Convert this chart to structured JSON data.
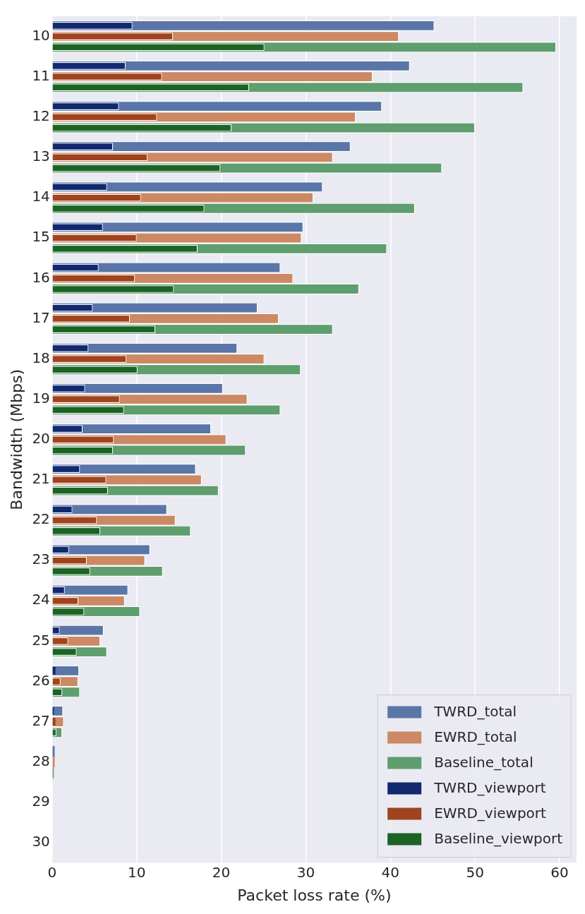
{
  "chart_data": {
    "type": "bar",
    "orientation": "horizontal",
    "xlabel": "Packet loss rate (%)",
    "ylabel": "Bandwidth (Mbps)",
    "categories": [
      "10",
      "11",
      "12",
      "13",
      "14",
      "15",
      "16",
      "17",
      "18",
      "19",
      "20",
      "21",
      "22",
      "23",
      "24",
      "25",
      "26",
      "27",
      "28",
      "29",
      "30"
    ],
    "xlim": [
      0,
      62
    ],
    "xticks": [
      0,
      10,
      20,
      30,
      40,
      50,
      60
    ],
    "grid": "x",
    "legend": "bottom right",
    "series": [
      {
        "name": "TWRD_total",
        "color": "#5a76a8",
        "values": [
          45.2,
          42.3,
          39.0,
          35.3,
          32.0,
          29.7,
          27.0,
          24.3,
          21.9,
          20.2,
          18.8,
          17.0,
          13.6,
          11.6,
          9.0,
          6.1,
          3.2,
          1.3,
          0.3,
          0,
          0
        ]
      },
      {
        "name": "EWRD_total",
        "color": "#cc8963",
        "values": [
          41.0,
          37.9,
          35.9,
          33.2,
          30.9,
          29.5,
          28.5,
          26.8,
          25.1,
          23.1,
          20.6,
          17.7,
          14.6,
          11.0,
          8.6,
          5.7,
          3.1,
          1.4,
          0.3,
          0,
          0
        ]
      },
      {
        "name": "Baseline_total",
        "color": "#5f9e6e",
        "values": [
          59.6,
          55.7,
          50.0,
          46.1,
          42.9,
          39.6,
          36.3,
          33.2,
          29.4,
          27.0,
          22.9,
          19.7,
          16.4,
          13.1,
          10.4,
          6.5,
          3.3,
          1.2,
          0.2,
          0,
          0
        ]
      },
      {
        "name": "TWRD_viewport",
        "color": "#12286f",
        "values": [
          9.5,
          8.7,
          7.9,
          7.2,
          6.5,
          6.0,
          5.5,
          4.8,
          4.3,
          3.9,
          3.6,
          3.3,
          2.4,
          2.0,
          1.5,
          0.9,
          0.4,
          0.2,
          null,
          0,
          0
        ]
      },
      {
        "name": "EWRD_viewport",
        "color": "#a0431f",
        "values": [
          14.3,
          13.0,
          12.4,
          11.3,
          10.5,
          10.0,
          9.8,
          9.2,
          8.8,
          8.0,
          7.3,
          6.4,
          5.3,
          4.1,
          3.1,
          1.9,
          1.0,
          0.4,
          null,
          0,
          0
        ]
      },
      {
        "name": "Baseline_viewport",
        "color": "#1d6324",
        "values": [
          25.1,
          23.3,
          21.2,
          19.9,
          18.0,
          17.2,
          14.4,
          12.2,
          10.1,
          8.5,
          7.2,
          6.6,
          5.7,
          4.5,
          3.8,
          2.9,
          1.2,
          0.5,
          null,
          0,
          0
        ]
      }
    ]
  }
}
